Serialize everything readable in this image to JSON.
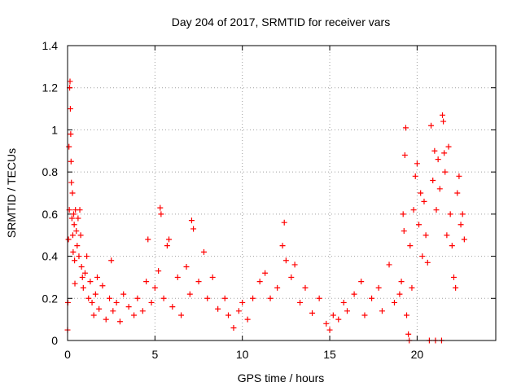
{
  "chart_data": {
    "type": "scatter",
    "title": "Day 204 of 2017, SRMTID for receiver vars",
    "xlabel": "GPS time / hours",
    "ylabel": "SRMTID / TECUs",
    "xlim": [
      0,
      24.5
    ],
    "ylim": [
      0,
      1.4
    ],
    "xticks": [
      0,
      5,
      10,
      15,
      20
    ],
    "yticks": [
      0,
      0.2,
      0.4,
      0.6,
      0.8,
      1,
      1.2,
      1.4
    ],
    "ytick_labels": [
      "0",
      "0.2",
      "0.4",
      "0.6",
      "0.8",
      "1",
      "1.2",
      "1.4"
    ],
    "grid": true,
    "legend": "none",
    "marker": "+",
    "series": [
      {
        "name": "SRMTID",
        "color": "#ff0000",
        "points": [
          [
            0.0,
            0.05
          ],
          [
            0.02,
            0.18
          ],
          [
            0.05,
            0.48
          ],
          [
            0.08,
            0.92
          ],
          [
            0.1,
            0.62
          ],
          [
            0.12,
            1.2
          ],
          [
            0.14,
            1.23
          ],
          [
            0.16,
            1.1
          ],
          [
            0.18,
            0.98
          ],
          [
            0.2,
            0.85
          ],
          [
            0.22,
            0.75
          ],
          [
            0.25,
            0.58
          ],
          [
            0.28,
            0.7
          ],
          [
            0.3,
            0.5
          ],
          [
            0.32,
            0.42
          ],
          [
            0.35,
            0.6
          ],
          [
            0.38,
            0.55
          ],
          [
            0.4,
            0.38
          ],
          [
            0.42,
            0.27
          ],
          [
            0.45,
            0.62
          ],
          [
            0.5,
            0.52
          ],
          [
            0.55,
            0.45
          ],
          [
            0.6,
            0.58
          ],
          [
            0.65,
            0.4
          ],
          [
            0.7,
            0.62
          ],
          [
            0.75,
            0.5
          ],
          [
            0.8,
            0.35
          ],
          [
            0.85,
            0.3
          ],
          [
            0.9,
            0.25
          ],
          [
            1.0,
            0.32
          ],
          [
            1.1,
            0.4
          ],
          [
            1.2,
            0.2
          ],
          [
            1.3,
            0.28
          ],
          [
            1.4,
            0.18
          ],
          [
            1.5,
            0.12
          ],
          [
            1.6,
            0.22
          ],
          [
            1.7,
            0.3
          ],
          [
            1.8,
            0.15
          ],
          [
            2.0,
            0.26
          ],
          [
            2.2,
            0.1
          ],
          [
            2.4,
            0.2
          ],
          [
            2.5,
            0.38
          ],
          [
            2.6,
            0.14
          ],
          [
            2.8,
            0.18
          ],
          [
            3.0,
            0.09
          ],
          [
            3.2,
            0.22
          ],
          [
            3.5,
            0.16
          ],
          [
            3.8,
            0.12
          ],
          [
            4.0,
            0.2
          ],
          [
            4.3,
            0.14
          ],
          [
            4.5,
            0.28
          ],
          [
            4.6,
            0.48
          ],
          [
            4.8,
            0.18
          ],
          [
            5.0,
            0.25
          ],
          [
            5.2,
            0.33
          ],
          [
            5.3,
            0.63
          ],
          [
            5.35,
            0.6
          ],
          [
            5.5,
            0.2
          ],
          [
            5.7,
            0.45
          ],
          [
            5.8,
            0.48
          ],
          [
            6.0,
            0.16
          ],
          [
            6.3,
            0.3
          ],
          [
            6.5,
            0.12
          ],
          [
            6.8,
            0.35
          ],
          [
            7.0,
            0.22
          ],
          [
            7.1,
            0.57
          ],
          [
            7.2,
            0.53
          ],
          [
            7.5,
            0.28
          ],
          [
            7.8,
            0.42
          ],
          [
            8.0,
            0.2
          ],
          [
            8.3,
            0.3
          ],
          [
            8.6,
            0.15
          ],
          [
            9.0,
            0.2
          ],
          [
            9.2,
            0.12
          ],
          [
            9.5,
            0.06
          ],
          [
            9.8,
            0.14
          ],
          [
            10.0,
            0.18
          ],
          [
            10.3,
            0.1
          ],
          [
            10.6,
            0.2
          ],
          [
            11.0,
            0.28
          ],
          [
            11.3,
            0.32
          ],
          [
            11.6,
            0.2
          ],
          [
            12.0,
            0.25
          ],
          [
            12.3,
            0.45
          ],
          [
            12.4,
            0.56
          ],
          [
            12.5,
            0.38
          ],
          [
            12.8,
            0.3
          ],
          [
            13.0,
            0.36
          ],
          [
            13.3,
            0.18
          ],
          [
            13.6,
            0.25
          ],
          [
            14.0,
            0.13
          ],
          [
            14.4,
            0.2
          ],
          [
            14.8,
            0.08
          ],
          [
            15.0,
            0.05
          ],
          [
            15.2,
            0.12
          ],
          [
            15.5,
            0.1
          ],
          [
            15.8,
            0.18
          ],
          [
            16.0,
            0.14
          ],
          [
            16.4,
            0.22
          ],
          [
            16.8,
            0.28
          ],
          [
            17.0,
            0.12
          ],
          [
            17.4,
            0.2
          ],
          [
            17.8,
            0.25
          ],
          [
            18.0,
            0.14
          ],
          [
            18.4,
            0.36
          ],
          [
            18.7,
            0.18
          ],
          [
            19.0,
            0.22
          ],
          [
            19.1,
            0.28
          ],
          [
            19.2,
            0.6
          ],
          [
            19.25,
            0.52
          ],
          [
            19.3,
            0.88
          ],
          [
            19.35,
            1.01
          ],
          [
            19.4,
            0.12
          ],
          [
            19.5,
            0.03
          ],
          [
            19.55,
            0.0
          ],
          [
            19.6,
            0.45
          ],
          [
            19.7,
            0.25
          ],
          [
            19.8,
            0.62
          ],
          [
            19.9,
            0.78
          ],
          [
            20.0,
            0.84
          ],
          [
            20.1,
            0.55
          ],
          [
            20.2,
            0.7
          ],
          [
            20.3,
            0.4
          ],
          [
            20.4,
            0.66
          ],
          [
            20.5,
            0.5
          ],
          [
            20.6,
            0.37
          ],
          [
            20.7,
            0.0
          ],
          [
            20.8,
            1.02
          ],
          [
            20.9,
            0.76
          ],
          [
            21.0,
            0.9
          ],
          [
            21.05,
            0.0
          ],
          [
            21.1,
            0.62
          ],
          [
            21.2,
            0.86
          ],
          [
            21.3,
            0.72
          ],
          [
            21.4,
            0.0
          ],
          [
            21.45,
            1.07
          ],
          [
            21.5,
            1.04
          ],
          [
            21.55,
            0.89
          ],
          [
            21.6,
            0.8
          ],
          [
            21.7,
            0.5
          ],
          [
            21.8,
            0.92
          ],
          [
            21.9,
            0.6
          ],
          [
            22.0,
            0.45
          ],
          [
            22.1,
            0.3
          ],
          [
            22.2,
            0.25
          ],
          [
            22.3,
            0.7
          ],
          [
            22.4,
            0.78
          ],
          [
            22.5,
            0.55
          ],
          [
            22.6,
            0.6
          ],
          [
            22.7,
            0.48
          ]
        ]
      }
    ]
  }
}
